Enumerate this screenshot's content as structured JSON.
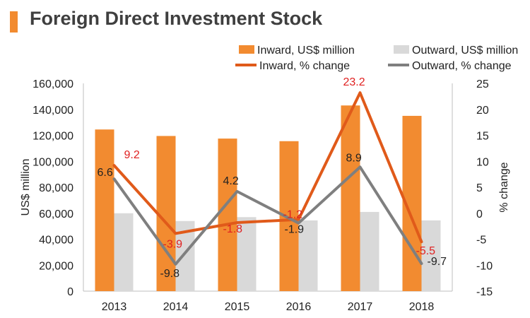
{
  "colors": {
    "accent": "#f28b30",
    "inward_bar": "#f28b30",
    "outward_bar": "#d9d9d9",
    "inward_line": "#e05a1a",
    "outward_line": "#7f7f7f",
    "inward_label": "#e02020",
    "outward_label": "#222222",
    "axis": "#bfbfbf",
    "text": "#222222"
  },
  "chart_data": {
    "type": "bar",
    "title": "Foreign Direct Investment Stock",
    "categories": [
      "2013",
      "2014",
      "2015",
      "2016",
      "2017",
      "2018"
    ],
    "ylabel": "US$ million",
    "y2label": "% change",
    "ylim": [
      0,
      160000
    ],
    "y2lim": [
      -15,
      25
    ],
    "yticks": [
      "0",
      "20,000",
      "40,000",
      "60,000",
      "80,000",
      "100,000",
      "120,000",
      "140,000",
      "160,000"
    ],
    "y2ticks": [
      "-15",
      "-10",
      "-5",
      "0",
      "5",
      "10",
      "15",
      "20",
      "25"
    ],
    "grid": false,
    "legend_position": "top",
    "series": [
      {
        "name": "Inward, US$ million",
        "type": "bar",
        "axis": "left",
        "values": [
          124500,
          119500,
          117500,
          115500,
          143000,
          135000
        ]
      },
      {
        "name": "Outward, US$ million",
        "type": "bar",
        "axis": "left",
        "values": [
          60000,
          54000,
          57000,
          54500,
          61000,
          54500
        ]
      },
      {
        "name": "Inward, % change",
        "type": "line",
        "axis": "right",
        "values": [
          9.2,
          -3.9,
          -1.8,
          -1.2,
          23.2,
          -5.5
        ],
        "labels": [
          "9.2",
          "-3.9",
          "-1.8",
          "-1.2",
          "23.2",
          "-5.5"
        ]
      },
      {
        "name": "Outward, % change",
        "type": "line",
        "axis": "right",
        "values": [
          6.6,
          -9.8,
          4.2,
          -1.9,
          8.9,
          -9.7
        ],
        "labels": [
          "6.6",
          "-9.8",
          "4.2",
          "-1.9",
          "8.9",
          "-9.7"
        ]
      }
    ]
  }
}
